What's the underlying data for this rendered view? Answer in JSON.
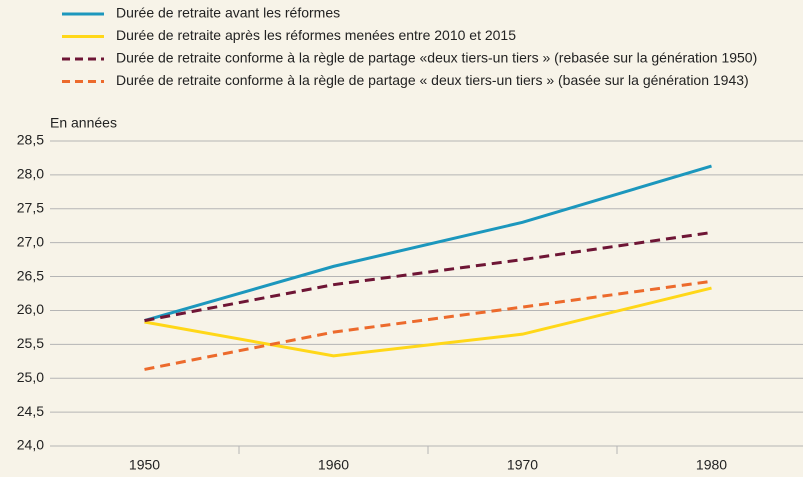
{
  "chart_data": {
    "type": "line",
    "y_label": "En années",
    "categories": [
      "1950",
      "1960",
      "1970",
      "1980"
    ],
    "series": [
      {
        "name": "Durée de retraite avant les réformes",
        "color": "#1c97bd",
        "dash": false,
        "values": [
          25.85,
          26.65,
          27.3,
          28.13
        ]
      },
      {
        "name": "Durée de retraite après les réformes menées entre 2010 et 2015",
        "color": "#ffd718",
        "dash": false,
        "values": [
          25.83,
          25.33,
          25.65,
          26.33
        ]
      },
      {
        "name": "Durée de retraite conforme à la règle de partage «deux tiers-un tiers » (rebasée sur la génération 1950)",
        "color": "#6e1535",
        "dash": true,
        "values": [
          25.85,
          26.38,
          26.75,
          27.15
        ]
      },
      {
        "name": "Durée de retraite conforme à la règle de partage « deux tiers-un tiers » (basée sur la génération 1943)",
        "color": "#ec6a2c",
        "dash": true,
        "values": [
          25.13,
          25.68,
          26.05,
          26.43
        ]
      }
    ],
    "ylim": [
      24,
      28.5
    ],
    "yticks": [
      {
        "value": 24,
        "label": "24,0"
      },
      {
        "value": 24.5,
        "label": "24,5"
      },
      {
        "value": 25,
        "label": "25,0"
      },
      {
        "value": 25.5,
        "label": "25,5"
      },
      {
        "value": 26,
        "label": "26,0"
      },
      {
        "value": 26.5,
        "label": "26,5"
      },
      {
        "value": 27,
        "label": "27,0"
      },
      {
        "value": 27.5,
        "label": "27,5"
      },
      {
        "value": 28,
        "label": "28,0"
      },
      {
        "value": 28.5,
        "label": "28,5"
      }
    ],
    "grid": true
  }
}
